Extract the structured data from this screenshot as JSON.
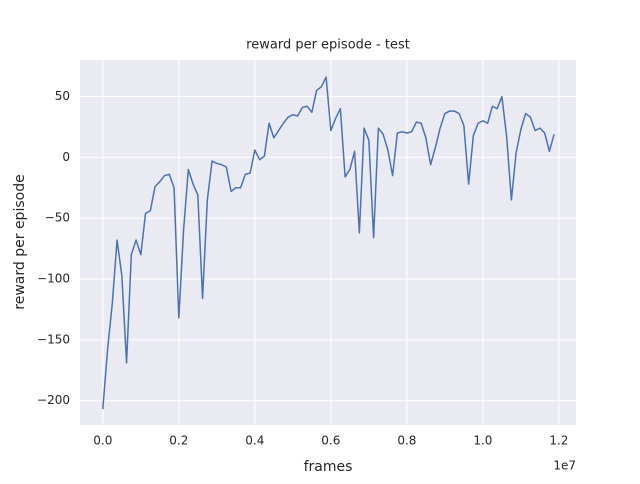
{
  "chart_data": {
    "type": "line",
    "title": "reward per episode - test",
    "x_label": "frames",
    "y_label": "reward per episode",
    "x_offset_label": "1e7",
    "x": [
      0,
      0.0125,
      0.025,
      0.0375,
      0.05,
      0.0625,
      0.075,
      0.0875,
      0.1,
      0.1125,
      0.125,
      0.1375,
      0.15,
      0.1625,
      0.175,
      0.1875,
      0.2,
      0.2125,
      0.225,
      0.2375,
      0.25,
      0.2625,
      0.275,
      0.2875,
      0.3,
      0.3125,
      0.325,
      0.3375,
      0.35,
      0.3625,
      0.375,
      0.3875,
      0.4,
      0.4125,
      0.425,
      0.4375,
      0.45,
      0.4625,
      0.475,
      0.4875,
      0.5,
      0.5125,
      0.525,
      0.5375,
      0.55,
      0.5625,
      0.575,
      0.5875,
      0.6,
      0.6125,
      0.625,
      0.6375,
      0.65,
      0.6625,
      0.675,
      0.6875,
      0.7,
      0.7125,
      0.725,
      0.7375,
      0.75,
      0.7625,
      0.775,
      0.7875,
      0.8,
      0.8125,
      0.825,
      0.8375,
      0.85,
      0.8625,
      0.875,
      0.8875,
      0.9,
      0.9125,
      0.925,
      0.9375,
      0.95,
      0.9625,
      0.975,
      0.9875,
      1.0,
      1.0125,
      1.025,
      1.0375,
      1.05,
      1.0625,
      1.075,
      1.0875,
      1.1,
      1.1125,
      1.125,
      1.1375,
      1.15,
      1.1625,
      1.175,
      1.1875
    ],
    "series": [
      {
        "name": "reward",
        "color": "#4c72b0",
        "values": [
          -207,
          -158,
          -120,
          -68,
          -97,
          -169,
          -80,
          -68,
          -80,
          -46,
          -44,
          -24,
          -20,
          -15,
          -14,
          -25,
          -132,
          -60,
          -10,
          -22,
          -31,
          -116,
          -35,
          -3,
          -5,
          -6,
          -8,
          -28,
          -25,
          -25,
          -14,
          -13,
          6,
          -2,
          1,
          28,
          16,
          22,
          28,
          33,
          35,
          34,
          41,
          42,
          37,
          55,
          58,
          66,
          22,
          32,
          40,
          -16,
          -10,
          5,
          -62,
          24,
          14,
          -66,
          24,
          19,
          6,
          -15,
          20,
          21,
          20,
          21,
          29,
          28,
          16,
          -6,
          8,
          24,
          36,
          38,
          38,
          36,
          26,
          -22,
          18,
          28,
          30,
          28,
          42,
          40,
          50,
          17,
          -35,
          4,
          23,
          36,
          33,
          22,
          24,
          20,
          5,
          19
        ]
      }
    ],
    "xlim": [
      -0.06,
      1.245
    ],
    "ylim": [
      -220,
      80
    ],
    "xticks": [
      {
        "value": 0,
        "label": "0.0"
      },
      0.2,
      0.4,
      0.6,
      0.8,
      {
        "value": 1,
        "label": "1.0"
      },
      1.2
    ],
    "yticks": [
      {
        "value": -200,
        "label": "−200"
      },
      {
        "value": -150,
        "label": "−150"
      },
      {
        "value": -100,
        "label": "−100"
      },
      {
        "value": -50,
        "label": "−50"
      },
      0,
      50
    ],
    "grid": true
  }
}
